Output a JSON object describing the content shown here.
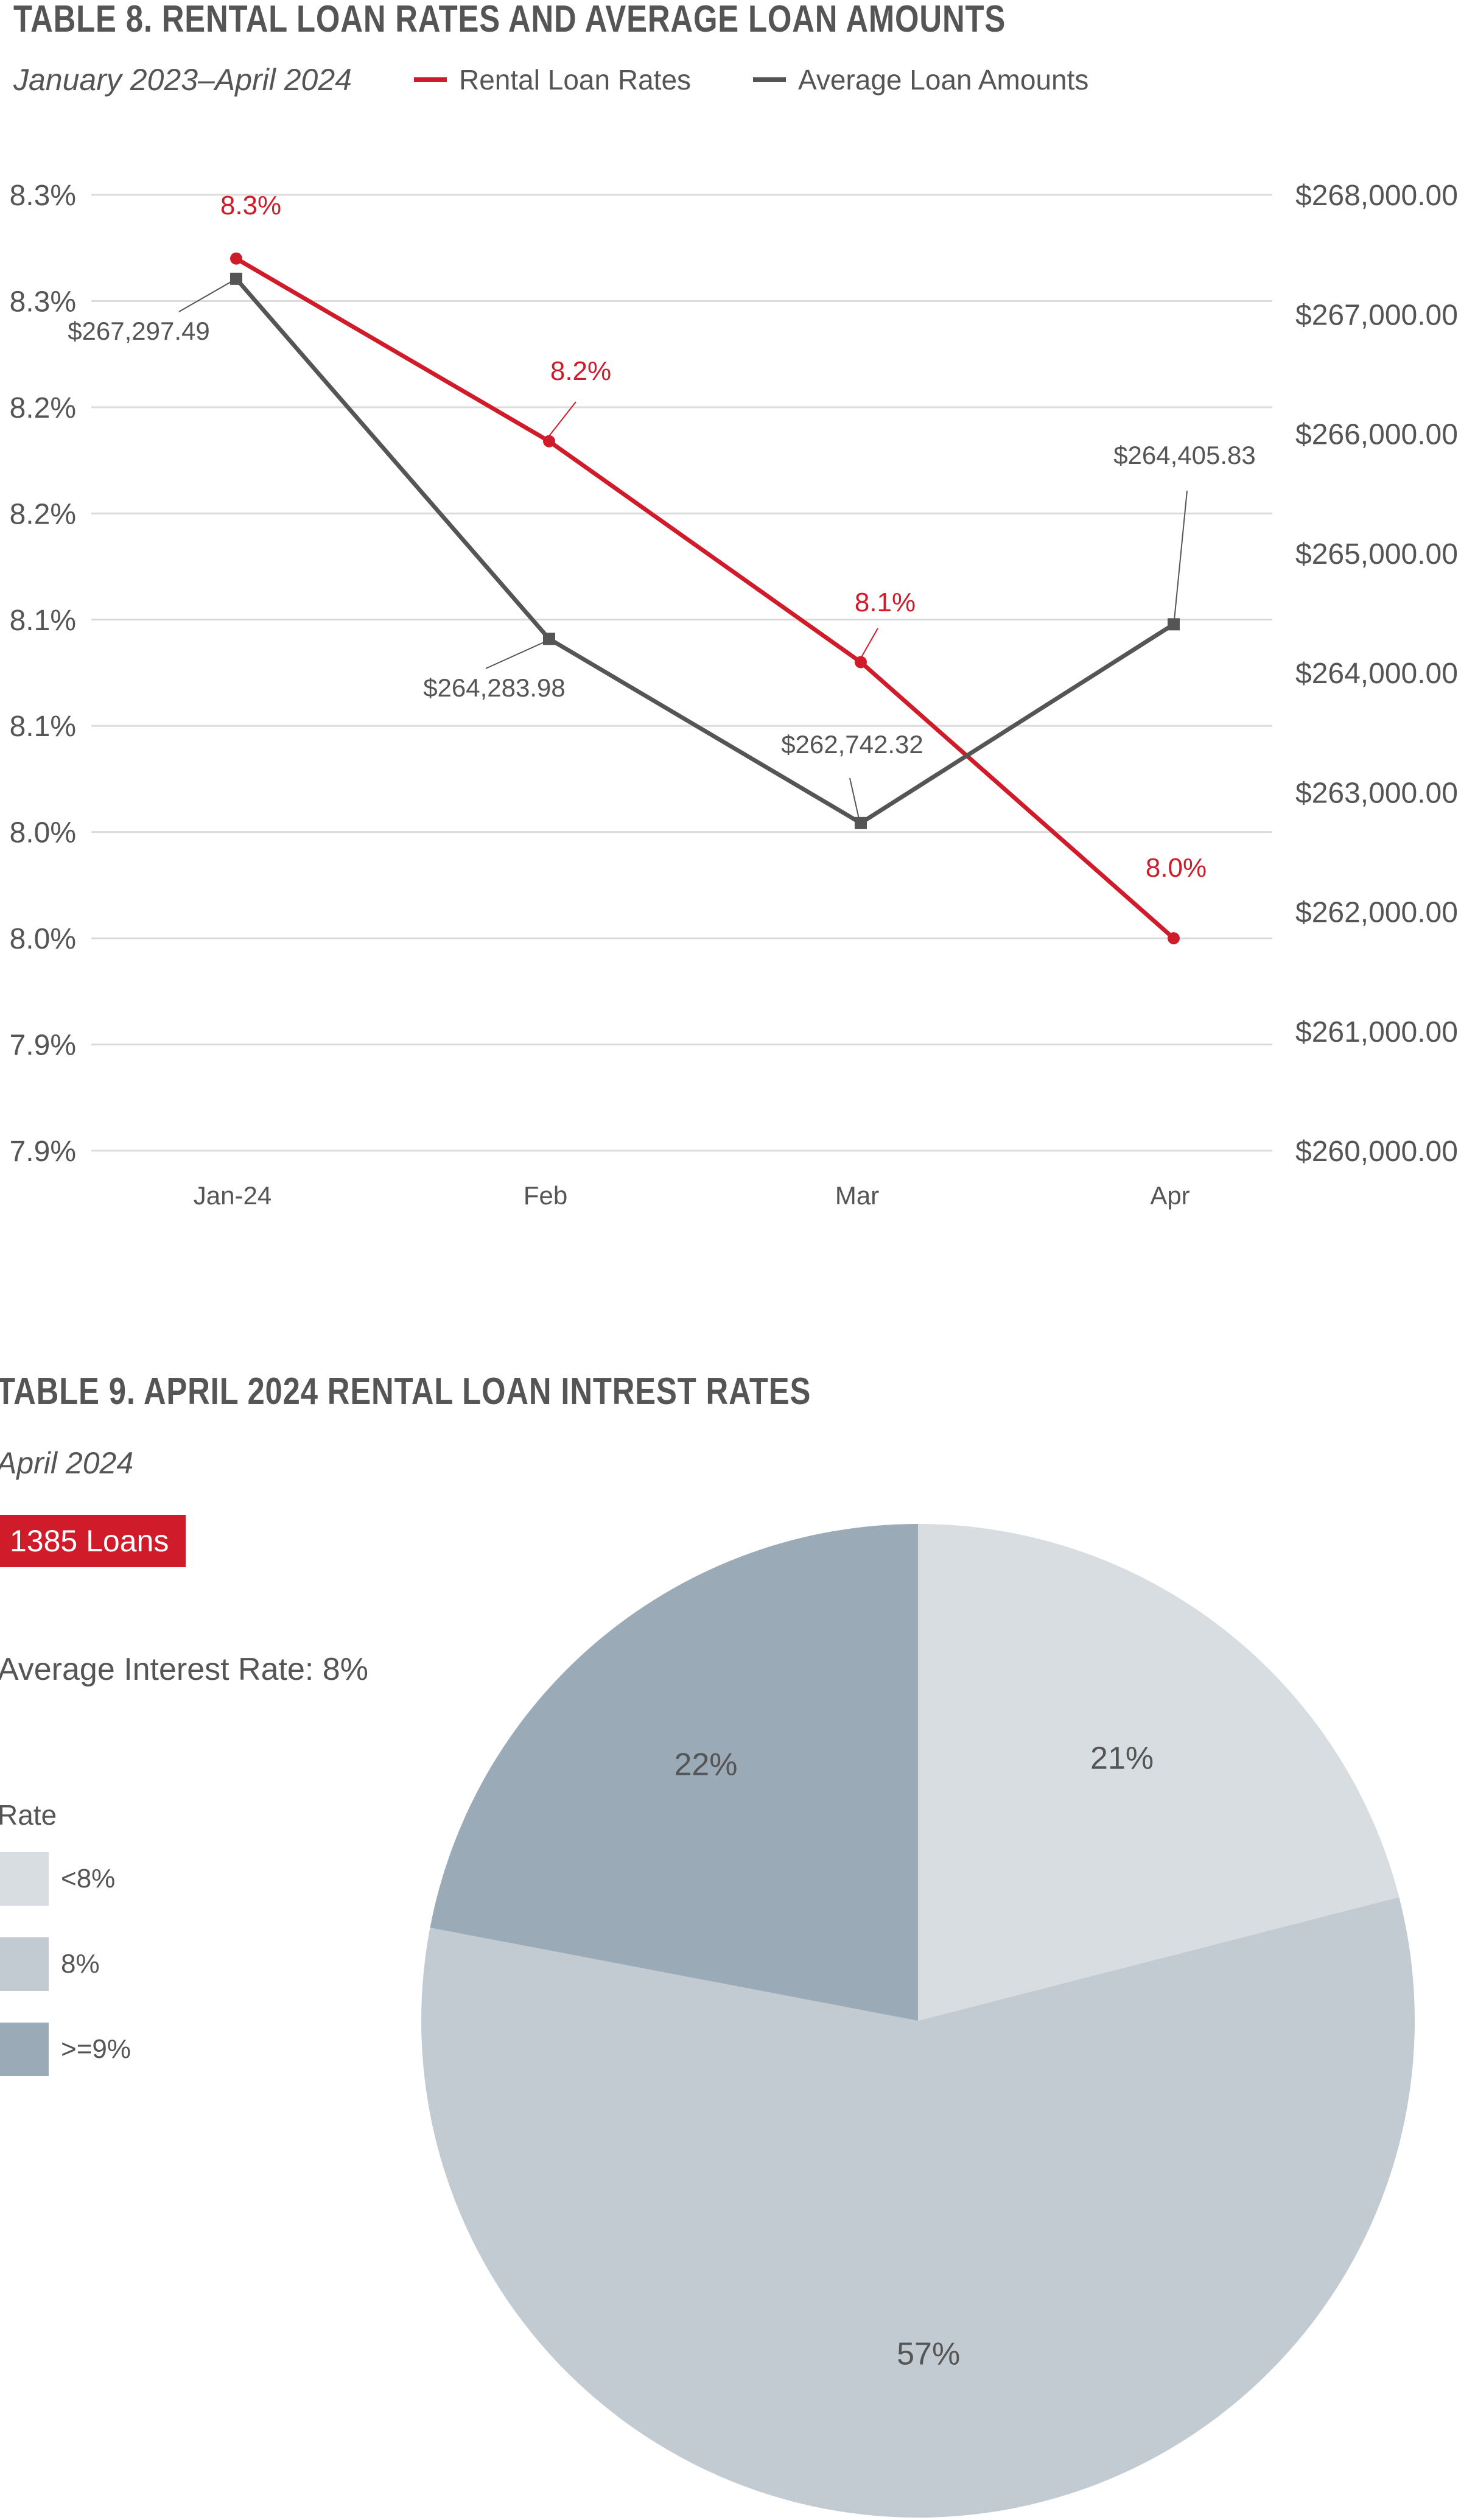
{
  "table8": {
    "title": "TABLE 8. RENTAL LOAN RATES AND AVERAGE LOAN AMOUNTS",
    "subtitle": "January 2023–April 2024",
    "legend": [
      {
        "label": "Rental Loan Rates",
        "color": "#d01c2a"
      },
      {
        "label": "Average Loan Amounts",
        "color": "#555555"
      }
    ]
  },
  "table9": {
    "title": "TABLE 9. APRIL 2024 RENTAL LOAN INTREST RATES",
    "subtitle": "April 2024",
    "badge": "1385 Loans",
    "average_rate": "Average Interest Rate: 8%",
    "legend_title": "Rate",
    "legend": [
      {
        "label": "<8%",
        "color": "#d8dde2"
      },
      {
        "label": "8%",
        "color": "#c2cad2"
      },
      {
        "label": ">=9%",
        "color": "#9aabb7"
      }
    ]
  },
  "chart_data": [
    {
      "type": "line",
      "title": "TABLE 8. RENTAL LOAN RATES AND AVERAGE LOAN AMOUNTS",
      "subtitle": "January 2023–April 2024",
      "categories": [
        "Jan-24",
        "Feb",
        "Mar",
        "Apr"
      ],
      "left_axis": {
        "ticks": [
          "8.3%",
          "8.3%",
          "8.2%",
          "8.2%",
          "8.1%",
          "8.1%",
          "8.0%",
          "8.0%",
          "7.9%",
          "7.9%"
        ],
        "ylim": [
          7.9,
          8.35
        ]
      },
      "right_axis": {
        "ticks": [
          "$268,000.00",
          "$267,000.00",
          "$266,000.00",
          "$265,000.00",
          "$264,000.00",
          "$263,000.00",
          "$262,000.00",
          "$261,000.00",
          "$260,000.00"
        ],
        "ylim": [
          260000,
          268000
        ]
      },
      "series": [
        {
          "name": "Rental Loan Rates",
          "axis": "left",
          "color": "#d01c2a",
          "values": [
            8.32,
            8.234,
            8.13,
            8.0
          ],
          "labels": [
            "8.3%",
            "8.2%",
            "8.1%",
            "8.0%"
          ]
        },
        {
          "name": "Average Loan Amounts",
          "axis": "right",
          "color": "#555555",
          "values": [
            267297.49,
            264283.98,
            262742.32,
            264405.83
          ],
          "labels": [
            "$267,297.49",
            "$264,283.98",
            "$262,742.32",
            "$264,405.83"
          ]
        }
      ],
      "grid": true,
      "legend_position": "top"
    },
    {
      "type": "pie",
      "title": "TABLE 9. APRIL 2024 RENTAL LOAN INTREST RATES",
      "subtitle": "April 2024",
      "slices": [
        {
          "label": "<8%",
          "value": 21,
          "display": "21%",
          "color": "#d8dde2"
        },
        {
          "label": "8%",
          "value": 57,
          "display": "57%",
          "color": "#c2cad2"
        },
        {
          "label": ">=9%",
          "value": 22,
          "display": "22%",
          "color": "#9aabb7"
        }
      ]
    }
  ]
}
